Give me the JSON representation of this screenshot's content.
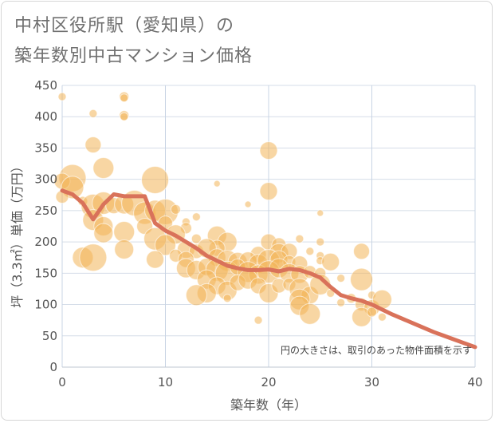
{
  "title_lines": [
    "中村区役所駅（愛知県）の",
    "築年数別中古マンション価格"
  ],
  "chart_data": {
    "type": "scatter",
    "title": "中村区役所駅（愛知県）の築年数別中古マンション価格",
    "xlabel": "築年数（年）",
    "ylabel": "坪（3.3㎡）単価（万円）",
    "xlim": [
      0,
      40
    ],
    "ylim": [
      0,
      450
    ],
    "xticks": [
      0,
      10,
      20,
      30,
      40
    ],
    "yticks": [
      0,
      50,
      100,
      150,
      200,
      250,
      300,
      350,
      400,
      450
    ],
    "grid": true,
    "note": "円の大きさは、取引のあった物件面積を示す",
    "bubble_color": "#f2b457",
    "line_color": "#d9725a",
    "points": [
      {
        "x": 0,
        "y": 432,
        "s": 5
      },
      {
        "x": 3,
        "y": 405,
        "s": 5
      },
      {
        "x": 6,
        "y": 432,
        "s": 6
      },
      {
        "x": 6,
        "y": 430,
        "s": 5
      },
      {
        "x": 6,
        "y": 402,
        "s": 6
      },
      {
        "x": 6,
        "y": 400,
        "s": 5
      },
      {
        "x": 3,
        "y": 355,
        "s": 10
      },
      {
        "x": 20,
        "y": 346,
        "s": 11
      },
      {
        "x": 4,
        "y": 318,
        "s": 13
      },
      {
        "x": 1,
        "y": 302,
        "s": 17
      },
      {
        "x": 0,
        "y": 297,
        "s": 10
      },
      {
        "x": 9,
        "y": 299,
        "s": 17
      },
      {
        "x": 15,
        "y": 293,
        "s": 4
      },
      {
        "x": 1,
        "y": 287,
        "s": 14
      },
      {
        "x": 20,
        "y": 281,
        "s": 11
      },
      {
        "x": 0,
        "y": 272,
        "s": 8
      },
      {
        "x": 2,
        "y": 265,
        "s": 6
      },
      {
        "x": 3,
        "y": 257,
        "s": 15
      },
      {
        "x": 4,
        "y": 262,
        "s": 14
      },
      {
        "x": 5,
        "y": 258,
        "s": 10
      },
      {
        "x": 6,
        "y": 260,
        "s": 12
      },
      {
        "x": 7,
        "y": 262,
        "s": 16
      },
      {
        "x": 8,
        "y": 246,
        "s": 14
      },
      {
        "x": 9,
        "y": 250,
        "s": 13
      },
      {
        "x": 10,
        "y": 248,
        "s": 16
      },
      {
        "x": 11,
        "y": 252,
        "s": 6
      },
      {
        "x": 25,
        "y": 246,
        "s": 4
      },
      {
        "x": 3,
        "y": 235,
        "s": 13
      },
      {
        "x": 4,
        "y": 225,
        "s": 12
      },
      {
        "x": 4,
        "y": 214,
        "s": 12
      },
      {
        "x": 6,
        "y": 216,
        "s": 13
      },
      {
        "x": 8,
        "y": 225,
        "s": 10
      },
      {
        "x": 10,
        "y": 230,
        "s": 9
      },
      {
        "x": 12,
        "y": 232,
        "s": 5
      },
      {
        "x": 13,
        "y": 240,
        "s": 5
      },
      {
        "x": 12,
        "y": 222,
        "s": 7
      },
      {
        "x": 9,
        "y": 205,
        "s": 14
      },
      {
        "x": 11,
        "y": 212,
        "s": 12
      },
      {
        "x": 10,
        "y": 195,
        "s": 13
      },
      {
        "x": 13,
        "y": 205,
        "s": 6
      },
      {
        "x": 15,
        "y": 210,
        "s": 12
      },
      {
        "x": 16,
        "y": 200,
        "s": 12
      },
      {
        "x": 15,
        "y": 190,
        "s": 10
      },
      {
        "x": 20,
        "y": 200,
        "s": 10
      },
      {
        "x": 21,
        "y": 195,
        "s": 9
      },
      {
        "x": 23,
        "y": 205,
        "s": 5
      },
      {
        "x": 25,
        "y": 200,
        "s": 5
      },
      {
        "x": 18,
        "y": 260,
        "s": 4
      },
      {
        "x": 6,
        "y": 188,
        "s": 12
      },
      {
        "x": 12,
        "y": 188,
        "s": 11
      },
      {
        "x": 13,
        "y": 185,
        "s": 9
      },
      {
        "x": 14,
        "y": 190,
        "s": 12
      },
      {
        "x": 19,
        "y": 180,
        "s": 10
      },
      {
        "x": 21,
        "y": 182,
        "s": 12
      },
      {
        "x": 22,
        "y": 185,
        "s": 10
      },
      {
        "x": 24,
        "y": 185,
        "s": 5
      },
      {
        "x": 25,
        "y": 178,
        "s": 5
      },
      {
        "x": 29,
        "y": 185,
        "s": 10
      },
      {
        "x": 2,
        "y": 175,
        "s": 13
      },
      {
        "x": 3,
        "y": 175,
        "s": 17
      },
      {
        "x": 9,
        "y": 172,
        "s": 11
      },
      {
        "x": 11,
        "y": 178,
        "s": 8
      },
      {
        "x": 12,
        "y": 172,
        "s": 10
      },
      {
        "x": 15,
        "y": 175,
        "s": 11
      },
      {
        "x": 16,
        "y": 170,
        "s": 13
      },
      {
        "x": 17,
        "y": 168,
        "s": 12
      },
      {
        "x": 18,
        "y": 170,
        "s": 11
      },
      {
        "x": 19,
        "y": 165,
        "s": 12
      },
      {
        "x": 20,
        "y": 170,
        "s": 14
      },
      {
        "x": 21,
        "y": 172,
        "s": 11
      },
      {
        "x": 22,
        "y": 168,
        "s": 8
      },
      {
        "x": 23,
        "y": 165,
        "s": 10
      },
      {
        "x": 25,
        "y": 170,
        "s": 5
      },
      {
        "x": 26,
        "y": 168,
        "s": 11
      },
      {
        "x": 12,
        "y": 158,
        "s": 12
      },
      {
        "x": 13,
        "y": 155,
        "s": 12
      },
      {
        "x": 14,
        "y": 160,
        "s": 11
      },
      {
        "x": 15,
        "y": 155,
        "s": 14
      },
      {
        "x": 16,
        "y": 150,
        "s": 15
      },
      {
        "x": 17,
        "y": 160,
        "s": 10
      },
      {
        "x": 18,
        "y": 152,
        "s": 13
      },
      {
        "x": 19,
        "y": 148,
        "s": 12
      },
      {
        "x": 20,
        "y": 152,
        "s": 14
      },
      {
        "x": 21,
        "y": 158,
        "s": 12
      },
      {
        "x": 22,
        "y": 150,
        "s": 12
      },
      {
        "x": 23,
        "y": 148,
        "s": 11
      },
      {
        "x": 24,
        "y": 152,
        "s": 8
      },
      {
        "x": 25,
        "y": 150,
        "s": 7
      },
      {
        "x": 27,
        "y": 142,
        "s": 5
      },
      {
        "x": 29,
        "y": 140,
        "s": 14
      },
      {
        "x": 14,
        "y": 140,
        "s": 12
      },
      {
        "x": 15,
        "y": 130,
        "s": 11
      },
      {
        "x": 16,
        "y": 122,
        "s": 12
      },
      {
        "x": 17,
        "y": 135,
        "s": 10
      },
      {
        "x": 18,
        "y": 140,
        "s": 12
      },
      {
        "x": 19,
        "y": 130,
        "s": 10
      },
      {
        "x": 20,
        "y": 118,
        "s": 12
      },
      {
        "x": 21,
        "y": 130,
        "s": 9
      },
      {
        "x": 22,
        "y": 132,
        "s": 8
      },
      {
        "x": 23,
        "y": 125,
        "s": 13
      },
      {
        "x": 24,
        "y": 115,
        "s": 11
      },
      {
        "x": 25,
        "y": 132,
        "s": 13
      },
      {
        "x": 26,
        "y": 118,
        "s": 5
      },
      {
        "x": 14,
        "y": 118,
        "s": 12
      },
      {
        "x": 13,
        "y": 115,
        "s": 13
      },
      {
        "x": 16,
        "y": 110,
        "s": 5
      },
      {
        "x": 23,
        "y": 108,
        "s": 13
      },
      {
        "x": 23,
        "y": 98,
        "s": 12
      },
      {
        "x": 27,
        "y": 103,
        "s": 5
      },
      {
        "x": 28,
        "y": 110,
        "s": 6
      },
      {
        "x": 29,
        "y": 100,
        "s": 8
      },
      {
        "x": 30,
        "y": 95,
        "s": 10
      },
      {
        "x": 30,
        "y": 115,
        "s": 5
      },
      {
        "x": 31,
        "y": 108,
        "s": 12
      },
      {
        "x": 31,
        "y": 80,
        "s": 5
      },
      {
        "x": 24,
        "y": 85,
        "s": 13
      },
      {
        "x": 29,
        "y": 80,
        "s": 12
      },
      {
        "x": 30,
        "y": 88,
        "s": 6
      },
      {
        "x": 19,
        "y": 75,
        "s": 5
      }
    ],
    "line": {
      "x": [
        0,
        1,
        2,
        3,
        4,
        5,
        6,
        7,
        8,
        9,
        10,
        11,
        12,
        13,
        14,
        15,
        16,
        17,
        18,
        19,
        20,
        21,
        22,
        23,
        24,
        25,
        26,
        27,
        28,
        29,
        30,
        31,
        32,
        33,
        34,
        35,
        36,
        37,
        38,
        39,
        40
      ],
      "y": [
        282,
        276,
        262,
        236,
        260,
        276,
        273,
        273,
        273,
        230,
        218,
        210,
        200,
        190,
        178,
        170,
        162,
        158,
        155,
        155,
        156,
        153,
        157,
        155,
        150,
        143,
        128,
        115,
        110,
        106,
        100,
        92,
        84,
        77,
        70,
        63,
        56,
        50,
        44,
        38,
        32
      ]
    }
  }
}
